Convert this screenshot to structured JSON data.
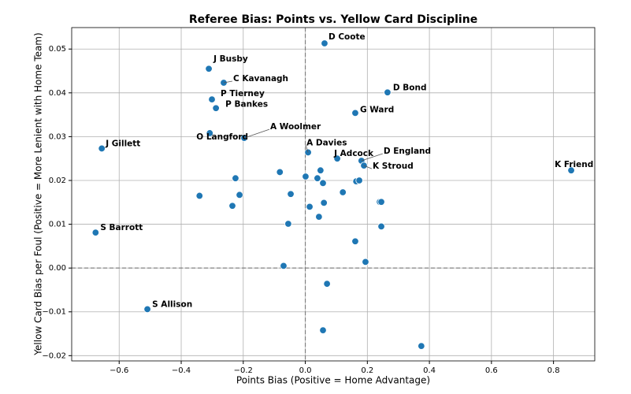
{
  "chart_data": {
    "type": "scatter",
    "title": "Referee Bias: Points vs. Yellow Card Discipline",
    "x_label": "Points Bias (Positive = Home Advantage)",
    "y_label": "Yellow Card Bias per Foul (Positive = More Lenient with Home Team)",
    "x": [
      0.062,
      -0.311,
      -0.263,
      0.265,
      -0.301,
      -0.288,
      0.161,
      -0.308,
      -0.197,
      -0.656,
      0.009,
      0.103,
      0.181,
      0.189,
      0.857,
      -0.676,
      -0.509,
      -0.082,
      0.049,
      0.001,
      0.039,
      -0.225,
      0.057,
      0.164,
      0.174,
      -0.341,
      -0.212,
      -0.047,
      0.121,
      0.24,
      0.245,
      0.014,
      0.06,
      -0.235,
      0.044,
      -0.055,
      0.245,
      0.161,
      0.194,
      -0.07,
      0.07,
      0.057,
      0.374
    ],
    "values": [
      0.0513,
      0.0455,
      0.0423,
      0.0401,
      0.0385,
      0.0365,
      0.0354,
      0.0308,
      0.0297,
      0.0273,
      0.0264,
      0.025,
      0.0245,
      0.0234,
      0.0223,
      0.0081,
      -0.0094,
      0.0219,
      0.0223,
      0.0209,
      0.0205,
      0.0205,
      0.0194,
      0.0198,
      0.02,
      0.0165,
      0.0167,
      0.0169,
      0.0173,
      0.0151,
      0.0151,
      0.014,
      0.0149,
      0.0142,
      0.0117,
      0.0101,
      0.0095,
      0.0061,
      0.0014,
      0.0005,
      -0.0036,
      -0.0142,
      -0.0178
    ],
    "labels": [
      "D Coote",
      "J Busby",
      "C Kavanagh",
      "D Bond",
      "P Tierney",
      "P Bankes",
      "G Ward",
      "O Langford",
      "A Woolmer",
      "J Gillett",
      "A Davies",
      "J Adcock",
      "D England",
      "K Stroud",
      "K Friend",
      "S Barrott",
      "S Allison",
      null,
      null,
      null,
      null,
      null,
      null,
      null,
      null,
      null,
      null,
      null,
      null,
      null,
      null,
      null,
      null,
      null,
      null,
      null,
      null,
      null,
      null,
      null,
      null,
      null,
      null
    ],
    "color": "#1f77b4",
    "xlim": [
      -0.753,
      0.933
    ],
    "ylim": [
      -0.0212,
      0.0549
    ],
    "xticks": [
      {
        "value": -0.6,
        "label": "−0.6"
      },
      {
        "value": -0.4,
        "label": "−0.4"
      },
      {
        "value": -0.2,
        "label": "−0.2"
      },
      {
        "value": 0,
        "label": "0.0"
      },
      0.2,
      0.4,
      0.6,
      0.8
    ],
    "yticks": [
      {
        "value": -0.02,
        "label": "−0.02"
      },
      {
        "value": -0.01,
        "label": "−0.01"
      },
      {
        "value": 0,
        "label": "0.00"
      },
      0.01,
      0.02,
      0.03,
      0.04,
      0.05
    ],
    "grid": true,
    "zero_lines": true
  }
}
